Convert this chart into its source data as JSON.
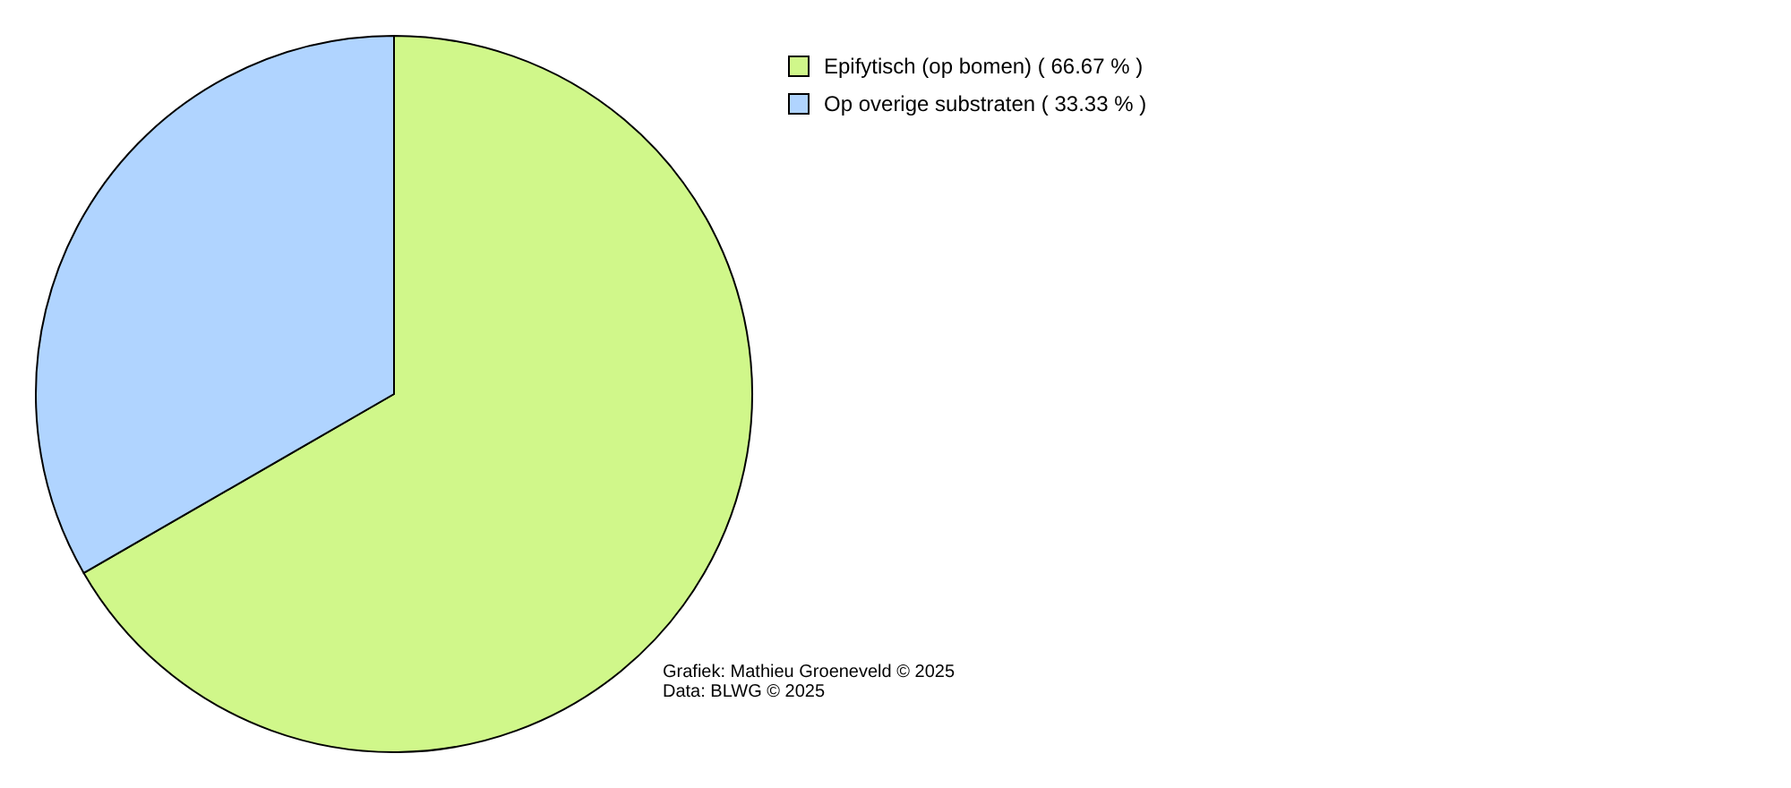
{
  "chart_data": {
    "type": "pie",
    "categories": [
      "Epifytisch (op bomen) ( 66.67 % )",
      "Op overige substraten ( 33.33 % )"
    ],
    "values": [
      66.67,
      33.33
    ],
    "colors": [
      "#d0f78a",
      "#b0d4ff"
    ],
    "legend": "top right",
    "annotations": [
      "Grafiek: Mathieu Groeneveld © 2025",
      "Data: BLWG © 2025"
    ]
  }
}
